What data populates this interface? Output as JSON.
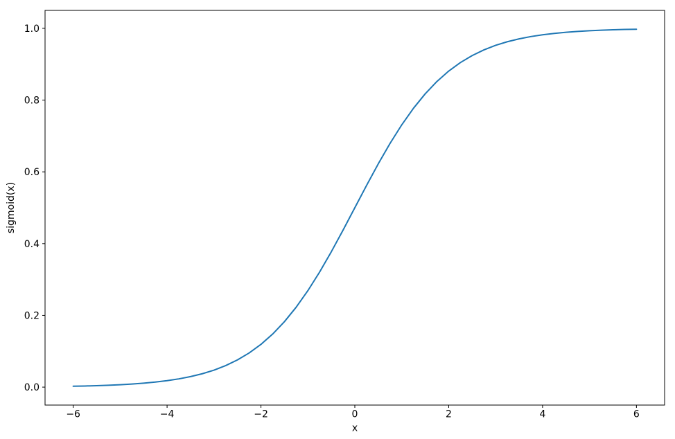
{
  "figure": {
    "background": "#ffffff",
    "spine_color": "#000000",
    "text_color": "#000000"
  },
  "chart_data": {
    "type": "line",
    "title": "",
    "xlabel": "x",
    "ylabel": "sigmoid(x)",
    "xlim": [
      -6.6,
      6.6
    ],
    "ylim": [
      -0.05,
      1.05
    ],
    "grid": false,
    "legend": false,
    "line_color": "#1f77b4",
    "line_width": 2,
    "xticks": {
      "values": [
        -6,
        -4,
        -2,
        0,
        2,
        4,
        6
      ],
      "labels": [
        "−6",
        "−4",
        "−2",
        "0",
        "2",
        "4",
        "6"
      ]
    },
    "yticks": {
      "values": [
        0.0,
        0.2,
        0.4,
        0.6,
        0.8,
        1.0
      ],
      "labels": [
        "0.0",
        "0.2",
        "0.4",
        "0.6",
        "0.8",
        "1.0"
      ]
    },
    "series": [
      {
        "name": "sigmoid",
        "x": [
          -6.0,
          -5.75,
          -5.5,
          -5.25,
          -5.0,
          -4.75,
          -4.5,
          -4.25,
          -4.0,
          -3.75,
          -3.5,
          -3.25,
          -3.0,
          -2.75,
          -2.5,
          -2.25,
          -2.0,
          -1.75,
          -1.5,
          -1.25,
          -1.0,
          -0.75,
          -0.5,
          -0.25,
          0.0,
          0.25,
          0.5,
          0.75,
          1.0,
          1.25,
          1.5,
          1.75,
          2.0,
          2.25,
          2.5,
          2.75,
          3.0,
          3.25,
          3.5,
          3.75,
          4.0,
          4.25,
          4.5,
          4.75,
          5.0,
          5.25,
          5.5,
          5.75,
          6.0
        ],
        "y": [
          0.002473,
          0.003173,
          0.00407,
          0.00522,
          0.006693,
          0.008577,
          0.010987,
          0.014064,
          0.017986,
          0.022977,
          0.029312,
          0.037327,
          0.047426,
          0.060087,
          0.075858,
          0.095349,
          0.119203,
          0.148047,
          0.182426,
          0.2227,
          0.268941,
          0.320821,
          0.377541,
          0.437823,
          0.5,
          0.562177,
          0.622459,
          0.679179,
          0.731059,
          0.7773,
          0.817574,
          0.851953,
          0.880797,
          0.904651,
          0.924142,
          0.939913,
          0.952574,
          0.962673,
          0.970688,
          0.977023,
          0.982014,
          0.985936,
          0.989013,
          0.991423,
          0.993307,
          0.99478,
          0.99593,
          0.996827,
          0.997527
        ]
      }
    ]
  }
}
